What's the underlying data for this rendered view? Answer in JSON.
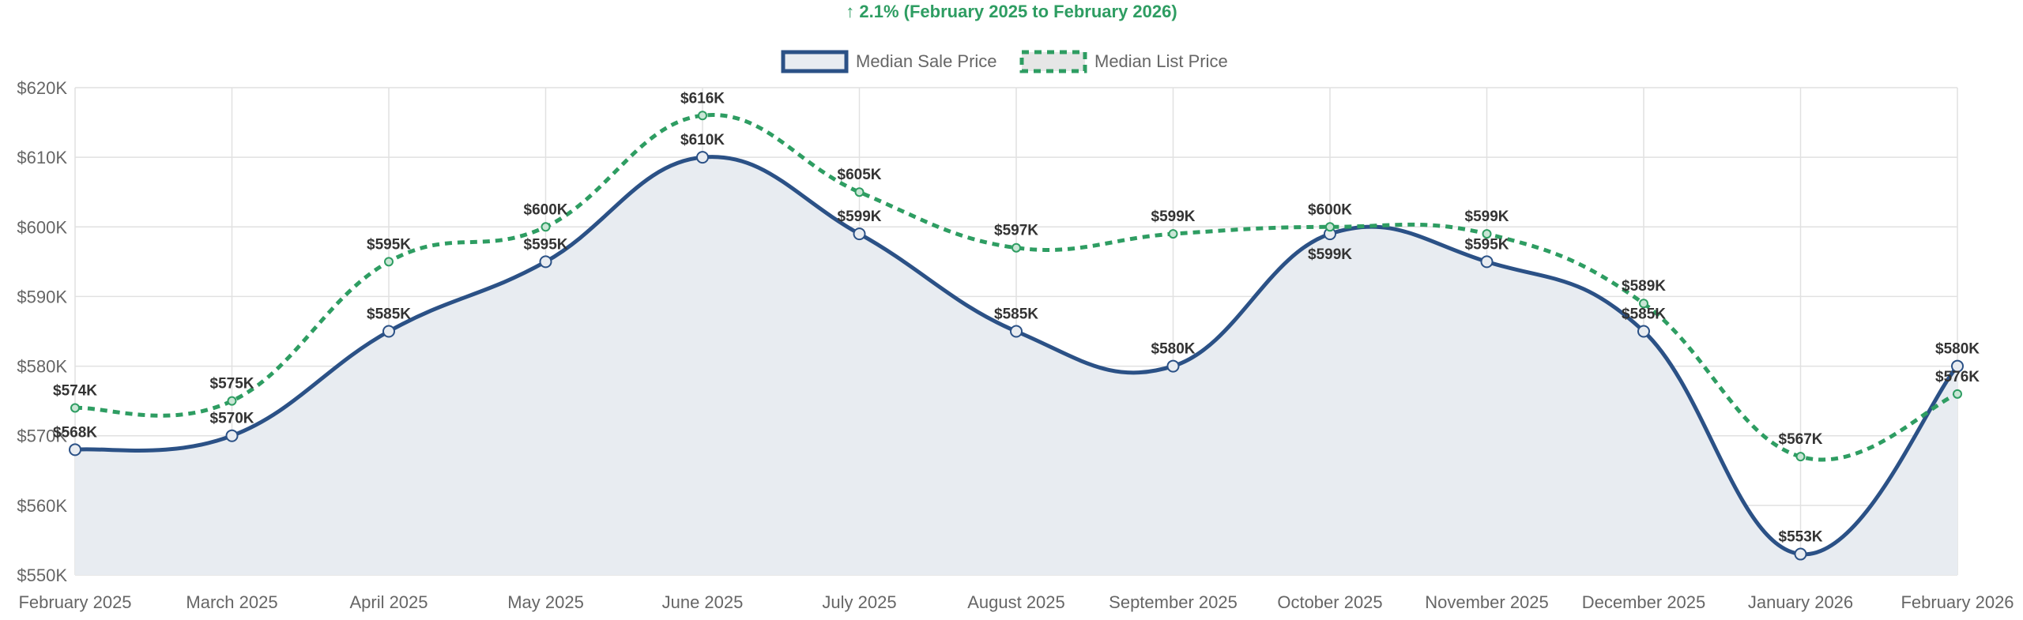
{
  "chart_data": {
    "type": "line",
    "title": "↑ 2.1% (February 2025 to February 2026)",
    "categories": [
      "February 2025",
      "March 2025",
      "April 2025",
      "May 2025",
      "June 2025",
      "July 2025",
      "August 2025",
      "September 2025",
      "October 2025",
      "November 2025",
      "December 2025",
      "January 2026",
      "February 2026"
    ],
    "ylim": [
      550,
      620
    ],
    "yticks": [
      "$550K",
      "$560K",
      "$570K",
      "$580K",
      "$590K",
      "$600K",
      "$610K",
      "$620K"
    ],
    "y_unit": "thousand USD",
    "grid": true,
    "legend_position": "top",
    "series": [
      {
        "name": "Median Sale Price",
        "color": "#2b5186",
        "fill": "#e8ecf1",
        "style": "solid-filled",
        "values": [
          568,
          570,
          585,
          595,
          610,
          599,
          585,
          580,
          599,
          595,
          585,
          553,
          580
        ]
      },
      {
        "name": "Median List Price",
        "color": "#2e9d62",
        "style": "dashed",
        "values": [
          574,
          575,
          595,
          600,
          616,
          605,
          597,
          599,
          600,
          599,
          589,
          567,
          576
        ]
      }
    ]
  }
}
